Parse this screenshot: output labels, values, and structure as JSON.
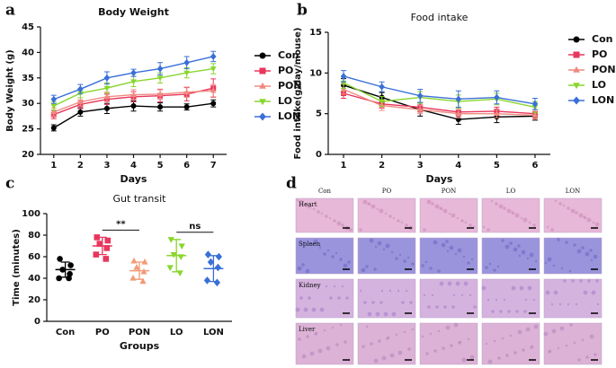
{
  "chart_data": [
    {
      "type": "line",
      "panel": "a",
      "title": "Body Weight",
      "x_label": "Days",
      "y_label": "Body Weight (g)",
      "x": [
        1,
        2,
        3,
        4,
        5,
        6,
        7
      ],
      "xlim": [
        0.5,
        7.5
      ],
      "xticks": [
        1,
        2,
        3,
        4,
        5,
        6,
        7
      ],
      "ylim": [
        20,
        45
      ],
      "yticks": [
        20,
        25,
        30,
        35,
        40,
        45
      ],
      "legend": "right",
      "series": [
        {
          "name": "Con",
          "color": "#000000",
          "marker": "circle",
          "values": [
            25.2,
            28.3,
            29.0,
            29.5,
            29.3,
            29.3,
            30.0
          ],
          "errors": [
            0.6,
            0.8,
            1.0,
            1.0,
            0.8,
            0.6,
            0.7
          ]
        },
        {
          "name": "PO",
          "color": "#e8365d",
          "marker": "square",
          "values": [
            27.8,
            29.8,
            30.8,
            31.3,
            31.5,
            31.8,
            33.0
          ],
          "errors": [
            0.8,
            0.8,
            1.0,
            1.0,
            1.2,
            1.3,
            1.8
          ]
        },
        {
          "name": "PON",
          "color": "#f08a80",
          "marker": "triangle",
          "values": [
            28.3,
            30.3,
            31.3,
            31.7,
            31.8,
            32.2,
            32.5
          ],
          "errors": [
            0.8,
            0.8,
            0.9,
            1.0,
            1.0,
            1.0,
            1.2
          ]
        },
        {
          "name": "LO",
          "color": "#88d62c",
          "marker": "triangle-down",
          "values": [
            29.5,
            32.0,
            33.0,
            34.3,
            35.0,
            36.0,
            36.8
          ],
          "errors": [
            0.8,
            0.9,
            1.0,
            1.0,
            1.0,
            1.0,
            1.0
          ]
        },
        {
          "name": "LON",
          "color": "#3a6fd8",
          "marker": "diamond",
          "values": [
            30.8,
            32.8,
            35.0,
            36.0,
            36.8,
            38.0,
            39.2
          ],
          "errors": [
            0.8,
            0.9,
            1.2,
            0.7,
            1.2,
            1.2,
            1.0
          ]
        }
      ]
    },
    {
      "type": "line",
      "panel": "b",
      "title": "Food intake",
      "x_label": "Days",
      "y_label": "Food intake(g/day/mouse)",
      "x": [
        1,
        2,
        3,
        4,
        5,
        6
      ],
      "xlim": [
        0.6,
        6.4
      ],
      "xticks": [
        1,
        2,
        3,
        4,
        5,
        6
      ],
      "ylim": [
        0,
        15
      ],
      "yticks": [
        0,
        5,
        10,
        15
      ],
      "legend": "right",
      "series": [
        {
          "name": "Con",
          "color": "#000000",
          "marker": "circle",
          "values": [
            8.5,
            7.0,
            5.5,
            4.3,
            4.6,
            4.7
          ],
          "errors": [
            0.8,
            0.6,
            0.8,
            0.6,
            0.7,
            0.5
          ]
        },
        {
          "name": "PO",
          "color": "#e8365d",
          "marker": "square",
          "values": [
            7.5,
            6.2,
            5.8,
            5.2,
            5.3,
            5.0
          ],
          "errors": [
            0.6,
            0.5,
            0.6,
            0.5,
            0.5,
            0.5
          ]
        },
        {
          "name": "PON",
          "color": "#f08a80",
          "marker": "triangle",
          "values": [
            8.0,
            6.0,
            5.5,
            5.0,
            5.0,
            4.8
          ],
          "errors": [
            0.6,
            0.6,
            0.5,
            0.5,
            0.5,
            0.5
          ]
        },
        {
          "name": "LO",
          "color": "#88d62c",
          "marker": "triangle-down",
          "values": [
            8.8,
            6.5,
            7.0,
            6.5,
            6.8,
            5.8
          ],
          "errors": [
            0.7,
            0.6,
            0.7,
            0.8,
            0.7,
            0.7
          ]
        },
        {
          "name": "LON",
          "color": "#3a6fd8",
          "marker": "diamond",
          "values": [
            9.6,
            8.3,
            7.2,
            6.8,
            7.0,
            6.2
          ],
          "errors": [
            0.7,
            0.6,
            0.8,
            1.0,
            0.8,
            0.7
          ]
        }
      ]
    },
    {
      "type": "dot",
      "panel": "c",
      "title": "Gut transit",
      "x_label": "Groups",
      "y_label": "Time (minutes)",
      "ylim": [
        0,
        100
      ],
      "yticks": [
        0,
        20,
        40,
        60,
        80,
        100
      ],
      "groups": [
        {
          "name": "Con",
          "color": "#000000",
          "points": [
            58,
            52,
            48,
            44,
            40,
            40
          ],
          "mean": 48,
          "sd": 7
        },
        {
          "name": "PO",
          "color": "#e8365d",
          "points": [
            78,
            75,
            72,
            68,
            62,
            58
          ],
          "mean": 70,
          "sd": 8
        },
        {
          "name": "PON",
          "color": "#f29b78",
          "points": [
            56,
            55,
            50,
            46,
            40,
            37
          ],
          "mean": 47,
          "sd": 8
        },
        {
          "name": "LO",
          "color": "#88d62c",
          "points": [
            76,
            70,
            62,
            60,
            50,
            45
          ],
          "mean": 61,
          "sd": 15
        },
        {
          "name": "LON",
          "color": "#3a6fd8",
          "points": [
            62,
            60,
            55,
            50,
            38,
            36
          ],
          "mean": 49,
          "sd": 12
        }
      ],
      "annotations": [
        {
          "text": "**",
          "between": [
            "PO",
            "PON"
          ]
        },
        {
          "text": "ns",
          "between": [
            "LO",
            "LON"
          ]
        }
      ]
    }
  ],
  "histology": {
    "panel": "d",
    "columns": [
      "Con",
      "PO",
      "PON",
      "LO",
      "LON"
    ],
    "rows": [
      "Heart",
      "Spleen",
      "Kidney",
      "Liver"
    ]
  }
}
